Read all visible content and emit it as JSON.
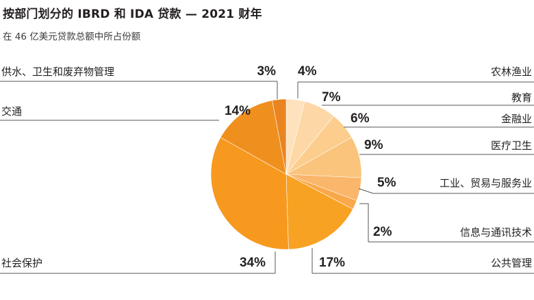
{
  "title": "按部门划分的 IBRD 和 IDA 贷款 — 2021 财年",
  "subtitle": "在 46 亿美元贷款总额中所占份额",
  "chart_data": {
    "type": "pie",
    "title": "按部门划分的 IBRD 和 IDA 贷款 — 2021 财年",
    "subtitle": "在 46 亿美元贷款总额中所占份额",
    "unit": "%",
    "slices": [
      {
        "name": "农林渔业",
        "value": 4,
        "label": "4%",
        "color": "#fde2bd"
      },
      {
        "name": "教育",
        "value": 7,
        "label": "7%",
        "color": "#fdd8a6"
      },
      {
        "name": "金融业",
        "value": 6,
        "label": "6%",
        "color": "#fccd8d"
      },
      {
        "name": "医疗卫生",
        "value": 9,
        "label": "9%",
        "color": "#fbc47d"
      },
      {
        "name": "工业、贸易与服务业",
        "value": 5,
        "label": "5%",
        "color": "#fab66a"
      },
      {
        "name": "信息与通讯技术",
        "value": 2,
        "label": "2%",
        "color": "#f9a84a"
      },
      {
        "name": "公共管理",
        "value": 17,
        "label": "17%",
        "color": "#f8a223"
      },
      {
        "name": "社会保护",
        "value": 34,
        "label": "34%",
        "color": "#f7991f"
      },
      {
        "name": "交通",
        "value": 14,
        "label": "14%",
        "color": "#ef8f1e"
      },
      {
        "name": "供水、卫生和废弃物管理",
        "value": 3,
        "label": "3%",
        "color": "#ea8420"
      }
    ]
  }
}
